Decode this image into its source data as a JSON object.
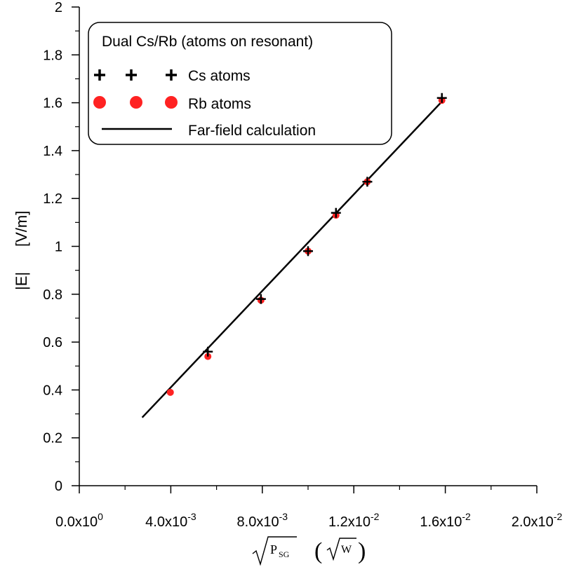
{
  "chart_data": {
    "type": "scatter",
    "xlim": [
      0,
      0.02
    ],
    "ylim": [
      0,
      2
    ],
    "x_ticks": [
      {
        "value": 0,
        "mantissa": "0.0",
        "exponent": "0"
      },
      {
        "value": 0.004,
        "mantissa": "4.0",
        "exponent": "-3"
      },
      {
        "value": 0.008,
        "mantissa": "8.0",
        "exponent": "-3"
      },
      {
        "value": 0.012,
        "mantissa": "1.2",
        "exponent": "-2"
      },
      {
        "value": 0.016,
        "mantissa": "1.6",
        "exponent": "-2"
      },
      {
        "value": 0.02,
        "mantissa": "2.0",
        "exponent": "-2"
      }
    ],
    "y_ticks": [
      {
        "value": 0,
        "label": "0"
      },
      {
        "value": 0.2,
        "label": "0.2"
      },
      {
        "value": 0.4,
        "label": "0.4"
      },
      {
        "value": 0.6,
        "label": "0.6"
      },
      {
        "value": 0.8,
        "label": "0.8"
      },
      {
        "value": 1.0,
        "label": "1"
      },
      {
        "value": 1.2,
        "label": "1.2"
      },
      {
        "value": 1.4,
        "label": "1.4"
      },
      {
        "value": 1.6,
        "label": "1.6"
      },
      {
        "value": 1.8,
        "label": "1.8"
      },
      {
        "value": 2.0,
        "label": "2"
      }
    ],
    "x_minor_ticks": [
      0.002,
      0.006,
      0.01,
      0.014,
      0.018
    ],
    "y_minor_ticks": [
      0.1,
      0.3,
      0.5,
      0.7,
      0.9,
      1.1,
      1.3,
      1.5,
      1.7,
      1.9
    ],
    "ylabel": {
      "left": "|E|",
      "right": "[V/m]"
    },
    "xlabel": {
      "var": "P",
      "sub": "SG",
      "unit": "W"
    },
    "legend": {
      "title": "Dual Cs/Rb (atoms on resonant)",
      "position": "top-left",
      "entries": [
        {
          "label": "Cs atoms",
          "symbol": "plus",
          "color": "#000000"
        },
        {
          "label": "Rb atoms",
          "symbol": "circle",
          "color": "#ff2222"
        },
        {
          "label": "Far-field calculation",
          "symbol": "line",
          "color": "#000000"
        }
      ]
    },
    "series": [
      {
        "name": "Cs atoms",
        "marker": "plus",
        "color": "#000000",
        "x": [
          0.00562,
          0.00794,
          0.01,
          0.01122,
          0.01259,
          0.01585
        ],
        "y": [
          0.56,
          0.78,
          0.98,
          1.14,
          1.27,
          1.62
        ]
      },
      {
        "name": "Rb atoms",
        "marker": "circle",
        "color": "#ff2222",
        "x": [
          0.00398,
          0.00562,
          0.00794,
          0.01,
          0.01122,
          0.01259,
          0.01585
        ],
        "y": [
          0.39,
          0.54,
          0.775,
          0.98,
          1.13,
          1.27,
          1.61
        ]
      },
      {
        "name": "Far-field calculation",
        "marker": "line",
        "color": "#000000",
        "x": [
          0.00275,
          0.01585
        ],
        "y": [
          0.285,
          1.605
        ]
      }
    ]
  }
}
